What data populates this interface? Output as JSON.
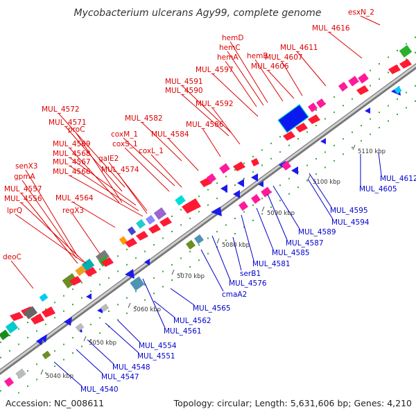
{
  "title": "Mycobacterium ulcerans Agy99, complete genome",
  "footer": {
    "accession": "Accession: NC_008611",
    "summary": "Topology: circular; Length: 5,631,606 bp; Genes: 4,210"
  },
  "colors": {
    "forward_label": "#dd0000",
    "reverse_label": "#0000cc",
    "forward_gene": "#ff0033",
    "reverse_gene": "#1a1aee",
    "backbone": "#999999",
    "tick": "#33aa33"
  },
  "kbp_ticks": [
    "5040 kbp",
    "5050 kbp",
    "5060 kbp",
    "5070 kbp",
    "5080 kbp",
    "5090 kbp",
    "5100 kbp",
    "5110 kbp"
  ],
  "forward_labels": [
    "esxN_2",
    "MUL_4616",
    "hemD",
    "hemC",
    "hemB",
    "hemA",
    "MUL_4607",
    "MUL_4611",
    "MUL_4606",
    "MUL_4597",
    "MUL_4591",
    "MUL_4590",
    "MUL_4592",
    "MUL_4572",
    "MUL_4582",
    "MUL_4586",
    "MUL_4571",
    "proC",
    "MUL_4584",
    "coxM_1",
    "coxS_1",
    "MUL_4569",
    "MUL_4568",
    "MUL_4567",
    "MUL_4566",
    "galE2",
    "coxL_1",
    "MUL_4574",
    "senX3",
    "gpmA",
    "MUL_4557",
    "MUL_4556",
    "MUL_4564",
    "regX3",
    "lprQ",
    "deoC"
  ],
  "reverse_labels": [
    "MUL_4612",
    "MUL_4605",
    "MUL_4595",
    "MUL_4594",
    "MUL_4589",
    "MUL_4587",
    "MUL_4585",
    "MUL_4581",
    "serB1",
    "MUL_4576",
    "cmaA2",
    "MUL_4565",
    "MUL_4562",
    "MUL_4561",
    "MUL_4554",
    "MUL_4551",
    "MUL_4548",
    "MUL_4547",
    "MUL_4540"
  ]
}
